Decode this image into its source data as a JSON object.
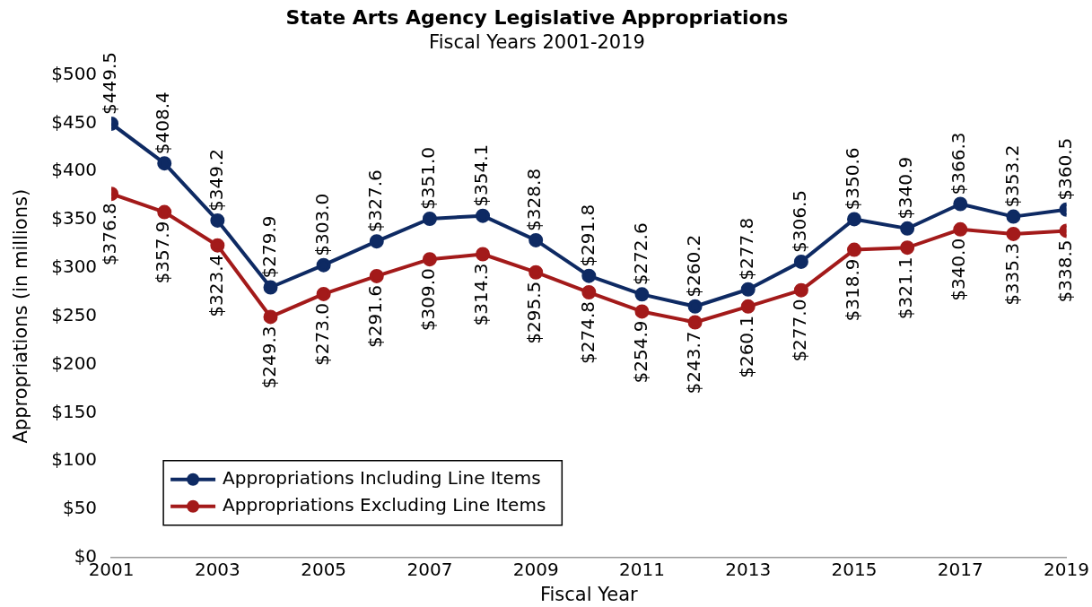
{
  "chart_data": {
    "type": "line",
    "title": "State Arts Agency Legislative Appropriations",
    "subtitle": "Fiscal Years 2001-2019",
    "xlabel": "Fiscal Year",
    "ylabel": "Appropriations (in millions)",
    "x": [
      2001,
      2002,
      2003,
      2004,
      2005,
      2006,
      2007,
      2008,
      2009,
      2010,
      2011,
      2012,
      2013,
      2014,
      2015,
      2016,
      2017,
      2018,
      2019
    ],
    "xlim": [
      2001,
      2019
    ],
    "xticks": [
      2001,
      2003,
      2005,
      2007,
      2009,
      2011,
      2013,
      2015,
      2017,
      2019
    ],
    "ylim": [
      0,
      500
    ],
    "yticks": [
      {
        "value": 0,
        "label": "$0"
      },
      {
        "value": 50,
        "label": "$50"
      },
      {
        "value": 100,
        "label": "$100"
      },
      {
        "value": 150,
        "label": "$150"
      },
      {
        "value": 200,
        "label": "$200"
      },
      {
        "value": 250,
        "label": "$250"
      },
      {
        "value": 300,
        "label": "$300"
      },
      {
        "value": 350,
        "label": "$350"
      },
      {
        "value": 400,
        "label": "$400"
      },
      {
        "value": 450,
        "label": "$450"
      },
      {
        "value": 500,
        "label": "$500"
      }
    ],
    "series": [
      {
        "name": "Appropriations Including Line Items",
        "color": "#0e2a63",
        "values": [
          449.5,
          408.4,
          349.2,
          279.9,
          303.0,
          327.6,
          351.0,
          354.1,
          328.8,
          291.8,
          272.6,
          260.2,
          277.8,
          306.5,
          350.6,
          340.9,
          366.3,
          353.2,
          360.5
        ],
        "value_labels": [
          "$449.5",
          "$408.4",
          "$349.2",
          "$279.9",
          "$303.0",
          "$327.6",
          "$351.0",
          "$354.1",
          "$328.8",
          "$291.8",
          "$272.6",
          "$260.2",
          "$277.8",
          "$306.5",
          "$350.6",
          "$340.9",
          "$366.3",
          "$353.2",
          "$360.5"
        ]
      },
      {
        "name": "Appropriations Excluding Line Items",
        "color": "#a31a1a",
        "values": [
          376.8,
          357.9,
          323.4,
          249.3,
          273.0,
          291.6,
          309.0,
          314.3,
          295.5,
          274.8,
          254.9,
          243.7,
          260.1,
          277.0,
          318.9,
          321.1,
          340.0,
          335.3,
          338.5
        ],
        "value_labels": [
          "$376.8",
          "$357.9",
          "$323.4",
          "$249.3",
          "$273.0",
          "$291.6",
          "$309.0",
          "$314.3",
          "$295.5",
          "$274.8",
          "$254.9",
          "$243.7",
          "$260.1",
          "$277.0",
          "$318.9",
          "$321.1",
          "$340.0",
          "$335.3",
          "$338.5"
        ]
      }
    ],
    "marker": "circle",
    "line_style": "solid",
    "grid": false,
    "legend": "bottom left"
  }
}
